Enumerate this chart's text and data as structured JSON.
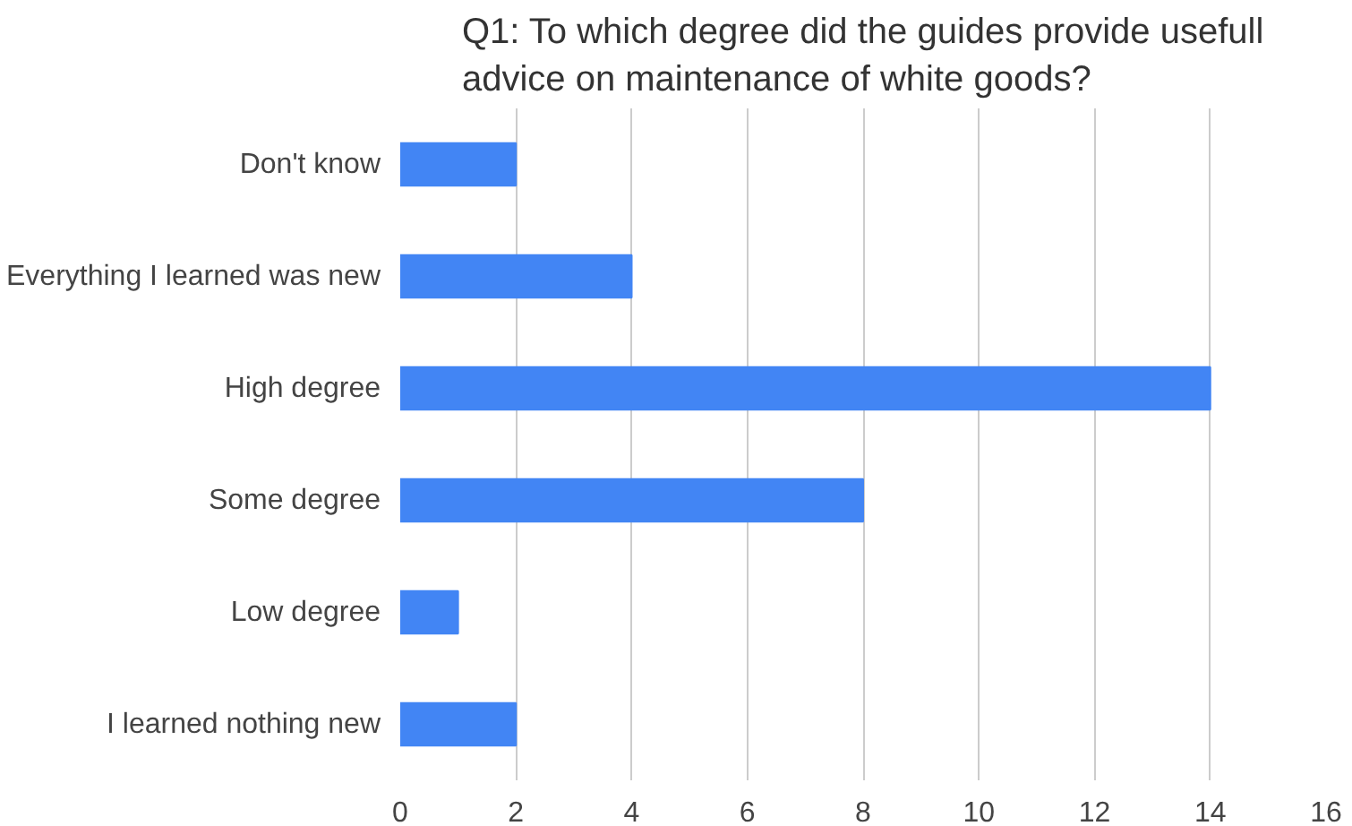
{
  "chart_data": {
    "type": "bar",
    "orientation": "horizontal",
    "title": "Q1: To which degree did the guides provide usefull advice on maintenance of white goods?",
    "categories": [
      "Don't know",
      "Everything I learned was new",
      "High degree",
      "Some degree",
      "Low degree",
      "I learned nothing new"
    ],
    "values": [
      2,
      4,
      14,
      8,
      1,
      2
    ],
    "color": "#4285f4",
    "xlim": [
      0,
      16
    ],
    "xticks": [
      0,
      2,
      4,
      6,
      8,
      10,
      12,
      14,
      16
    ],
    "grid": "x"
  }
}
